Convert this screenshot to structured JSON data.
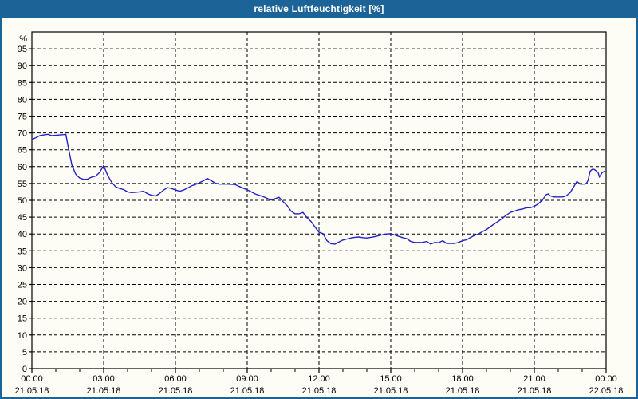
{
  "window": {
    "title": "relative Luftfeuchtigkeit [%]"
  },
  "colors": {
    "titlebar_bg": "#1C6397",
    "titlebar_text": "#FFFFFF",
    "window_border": "#1C6397",
    "background": "#FDFDF6",
    "plot_border": "#000000",
    "grid": "#000000",
    "tick_text": "#000000",
    "series_line": "#2222C8"
  },
  "chart_data": {
    "type": "line",
    "title": "relative Luftfeuchtigkeit [%]",
    "ylabel": "%",
    "ylim": [
      0,
      100
    ],
    "y_ticks": [
      0,
      5,
      10,
      15,
      20,
      25,
      30,
      35,
      40,
      45,
      50,
      55,
      60,
      65,
      70,
      75,
      80,
      85,
      90,
      95
    ],
    "xlim_hours": [
      0,
      24
    ],
    "x_minor_tick_hours": 1,
    "x_major_ticks": [
      {
        "hour": 0,
        "time": "00:00",
        "date": "21.05.18"
      },
      {
        "hour": 3,
        "time": "03:00",
        "date": "21.05.18"
      },
      {
        "hour": 6,
        "time": "06:00",
        "date": "21.05.18"
      },
      {
        "hour": 9,
        "time": "09:00",
        "date": "21.05.18"
      },
      {
        "hour": 12,
        "time": "12:00",
        "date": "21.05.18"
      },
      {
        "hour": 15,
        "time": "15:00",
        "date": "21.05.18"
      },
      {
        "hour": 18,
        "time": "18:00",
        "date": "21.05.18"
      },
      {
        "hour": 21,
        "time": "21:00",
        "date": "21.05.18"
      },
      {
        "hour": 24,
        "time": "00:00",
        "date": "22.05.18"
      }
    ],
    "grid": "dashed-both-axes",
    "legend_position": "none",
    "series": [
      {
        "name": "relative Luftfeuchtigkeit [%]",
        "color": "#2222C8",
        "points": [
          [
            0,
            68
          ],
          [
            0.17,
            68.6
          ],
          [
            0.33,
            69.2
          ],
          [
            0.5,
            69.4
          ],
          [
            0.67,
            69.6
          ],
          [
            0.83,
            69.2
          ],
          [
            1,
            69.3
          ],
          [
            1.17,
            69.4
          ],
          [
            1.33,
            69.5
          ],
          [
            1.42,
            69.6
          ],
          [
            1.5,
            66.5
          ],
          [
            1.67,
            60.5
          ],
          [
            1.83,
            57.8
          ],
          [
            2,
            56.6
          ],
          [
            2.17,
            56.2
          ],
          [
            2.33,
            56.3
          ],
          [
            2.5,
            56.9
          ],
          [
            2.67,
            57.2
          ],
          [
            2.83,
            58.3
          ],
          [
            3,
            60.3
          ],
          [
            3.17,
            57.4
          ],
          [
            3.33,
            55.4
          ],
          [
            3.5,
            54
          ],
          [
            3.67,
            53.5
          ],
          [
            3.83,
            53.2
          ],
          [
            4,
            52.5
          ],
          [
            4.17,
            52.3
          ],
          [
            4.33,
            52.4
          ],
          [
            4.5,
            52.5
          ],
          [
            4.67,
            52.7
          ],
          [
            4.83,
            52
          ],
          [
            5,
            51.5
          ],
          [
            5.17,
            51.3
          ],
          [
            5.33,
            52
          ],
          [
            5.5,
            53
          ],
          [
            5.67,
            53.8
          ],
          [
            5.83,
            53.5
          ],
          [
            6,
            53.1
          ],
          [
            6.17,
            52.7
          ],
          [
            6.33,
            53
          ],
          [
            6.5,
            53.6
          ],
          [
            6.67,
            54.3
          ],
          [
            6.83,
            54.7
          ],
          [
            7,
            55.2
          ],
          [
            7.17,
            55.8
          ],
          [
            7.33,
            56.5
          ],
          [
            7.5,
            55.8
          ],
          [
            7.67,
            55.1
          ],
          [
            7.83,
            54.8
          ],
          [
            8.17,
            54.8
          ],
          [
            8.5,
            54.7
          ],
          [
            8.67,
            54.1
          ],
          [
            8.83,
            53.6
          ],
          [
            9,
            53.1
          ],
          [
            9.17,
            52.5
          ],
          [
            9.33,
            51.9
          ],
          [
            9.5,
            51.5
          ],
          [
            9.67,
            51.1
          ],
          [
            9.83,
            50.6
          ],
          [
            10,
            50.1
          ],
          [
            10.17,
            50.5
          ],
          [
            10.33,
            50.9
          ],
          [
            10.5,
            49.6
          ],
          [
            10.67,
            48.4
          ],
          [
            10.83,
            46.8
          ],
          [
            11,
            46
          ],
          [
            11.17,
            46
          ],
          [
            11.33,
            46.4
          ],
          [
            11.5,
            44.8
          ],
          [
            11.67,
            43.7
          ],
          [
            11.83,
            42.1
          ],
          [
            12,
            40.5
          ],
          [
            12.17,
            40.1
          ],
          [
            12.33,
            38
          ],
          [
            12.5,
            37.1
          ],
          [
            12.67,
            37
          ],
          [
            12.83,
            37.6
          ],
          [
            13,
            38.2
          ],
          [
            13.17,
            38.5
          ],
          [
            13.33,
            38.8
          ],
          [
            13.5,
            39
          ],
          [
            13.67,
            39.1
          ],
          [
            13.83,
            38.9
          ],
          [
            14,
            38.8
          ],
          [
            14.17,
            39
          ],
          [
            14.33,
            39.2
          ],
          [
            14.5,
            39.5
          ],
          [
            14.67,
            39.8
          ],
          [
            14.83,
            40
          ],
          [
            15,
            40.1
          ],
          [
            15.17,
            39.7
          ],
          [
            15.33,
            39.3
          ],
          [
            15.5,
            38.9
          ],
          [
            15.67,
            38.6
          ],
          [
            15.83,
            37.8
          ],
          [
            16,
            37.5
          ],
          [
            16.33,
            37.5
          ],
          [
            16.5,
            37.8
          ],
          [
            16.67,
            37
          ],
          [
            16.83,
            37.5
          ],
          [
            17,
            37.4
          ],
          [
            17.17,
            38
          ],
          [
            17.33,
            37.2
          ],
          [
            17.67,
            37.2
          ],
          [
            17.83,
            37.5
          ],
          [
            18,
            38
          ],
          [
            18.17,
            38.3
          ],
          [
            18.33,
            38.9
          ],
          [
            18.5,
            39.6
          ],
          [
            18.67,
            40
          ],
          [
            18.83,
            40.7
          ],
          [
            19,
            41.3
          ],
          [
            19.17,
            42.2
          ],
          [
            19.33,
            43
          ],
          [
            19.5,
            43.8
          ],
          [
            19.67,
            44.7
          ],
          [
            19.83,
            45.6
          ],
          [
            20,
            46.4
          ],
          [
            20.17,
            46.8
          ],
          [
            20.33,
            47.2
          ],
          [
            20.5,
            47.4
          ],
          [
            20.67,
            47.8
          ],
          [
            20.83,
            47.8
          ],
          [
            21,
            48.2
          ],
          [
            21.17,
            49
          ],
          [
            21.33,
            50
          ],
          [
            21.5,
            51.7
          ],
          [
            21.58,
            51.9
          ],
          [
            21.67,
            51.3
          ],
          [
            21.83,
            51
          ],
          [
            22,
            51
          ],
          [
            22.17,
            51
          ],
          [
            22.33,
            51.3
          ],
          [
            22.5,
            52.3
          ],
          [
            22.67,
            54.3
          ],
          [
            22.78,
            55.6
          ],
          [
            22.92,
            54.8
          ],
          [
            23.08,
            54.8
          ],
          [
            23.17,
            54.9
          ],
          [
            23.25,
            56
          ],
          [
            23.33,
            58.6
          ],
          [
            23.42,
            59.2
          ],
          [
            23.5,
            59.2
          ],
          [
            23.58,
            58.8
          ],
          [
            23.67,
            58.2
          ],
          [
            23.72,
            56.9
          ],
          [
            23.83,
            58.2
          ],
          [
            23.95,
            58.7
          ]
        ]
      }
    ]
  }
}
